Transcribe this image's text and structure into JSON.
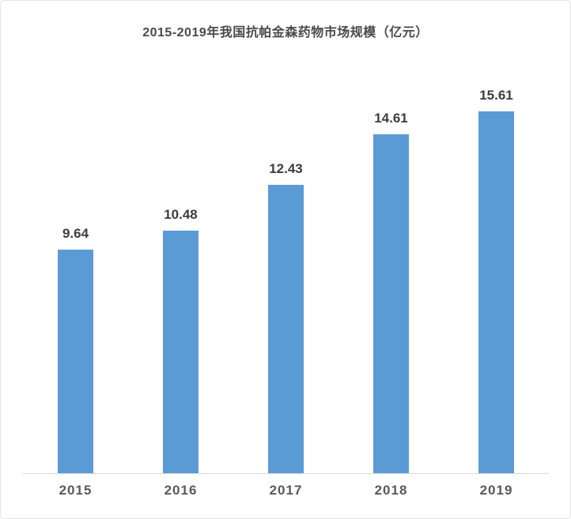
{
  "chart_data": {
    "type": "bar",
    "title": "2015-2019年我国抗帕金森药物市场规模（亿元）",
    "categories": [
      "2015",
      "2016",
      "2017",
      "2018",
      "2019"
    ],
    "values": [
      9.64,
      10.48,
      12.43,
      14.61,
      15.61
    ],
    "value_labels": [
      "9.64",
      "10.48",
      "12.43",
      "14.61",
      "15.61"
    ],
    "xlabel": "",
    "ylabel": "",
    "ylim": [
      0,
      18
    ],
    "grid": false,
    "legend": false,
    "data_labels_shown": true,
    "y_axis_shown": false
  },
  "colors": {
    "bar": "#5B9BD5",
    "title_text": "#4a4a4a",
    "value_label_text": "#3d3d3d",
    "axis_label_text": "#595959",
    "axis_line": "#d9d9d9",
    "frame_border": "#e3e3e3",
    "background": "#ffffff"
  }
}
